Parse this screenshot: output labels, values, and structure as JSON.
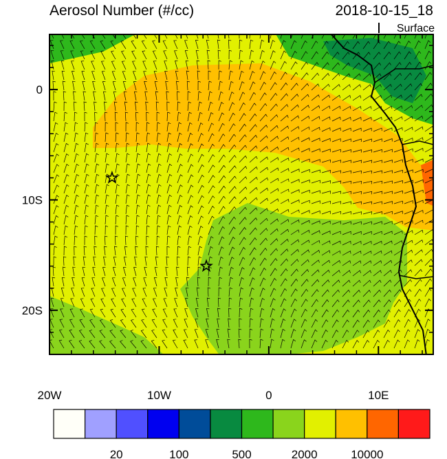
{
  "header": {
    "title": "Aerosol Number (#/cc)",
    "timestamp": "2018-10-15_18",
    "level": "Surface"
  },
  "map": {
    "lon_range": [
      -20,
      15
    ],
    "lat_range": [
      -24,
      5
    ],
    "lon_ticks": [
      {
        "value": -20,
        "label": "20W"
      },
      {
        "value": -10,
        "label": "10W"
      },
      0,
      {
        "value": 10,
        "label": "10E"
      }
    ],
    "lat_ticks": [
      0,
      {
        "value": -10,
        "label": "10S"
      },
      {
        "value": -20,
        "label": "20S"
      }
    ],
    "markers": [
      {
        "lon": -14.3,
        "lat": -8
      },
      {
        "lon": -5.7,
        "lat": -16
      }
    ]
  },
  "colorbar": {
    "colors": [
      "#fffff8",
      "#a0a0ff",
      "#5050ff",
      "#0000f0",
      "#004c99",
      "#088a40",
      "#2eb81c",
      "#8ad41c",
      "#e2f000",
      "#ffc000",
      "#ff6600",
      "#ff1a1a"
    ],
    "ticks": [
      20,
      100,
      500,
      2000,
      10000
    ]
  }
}
